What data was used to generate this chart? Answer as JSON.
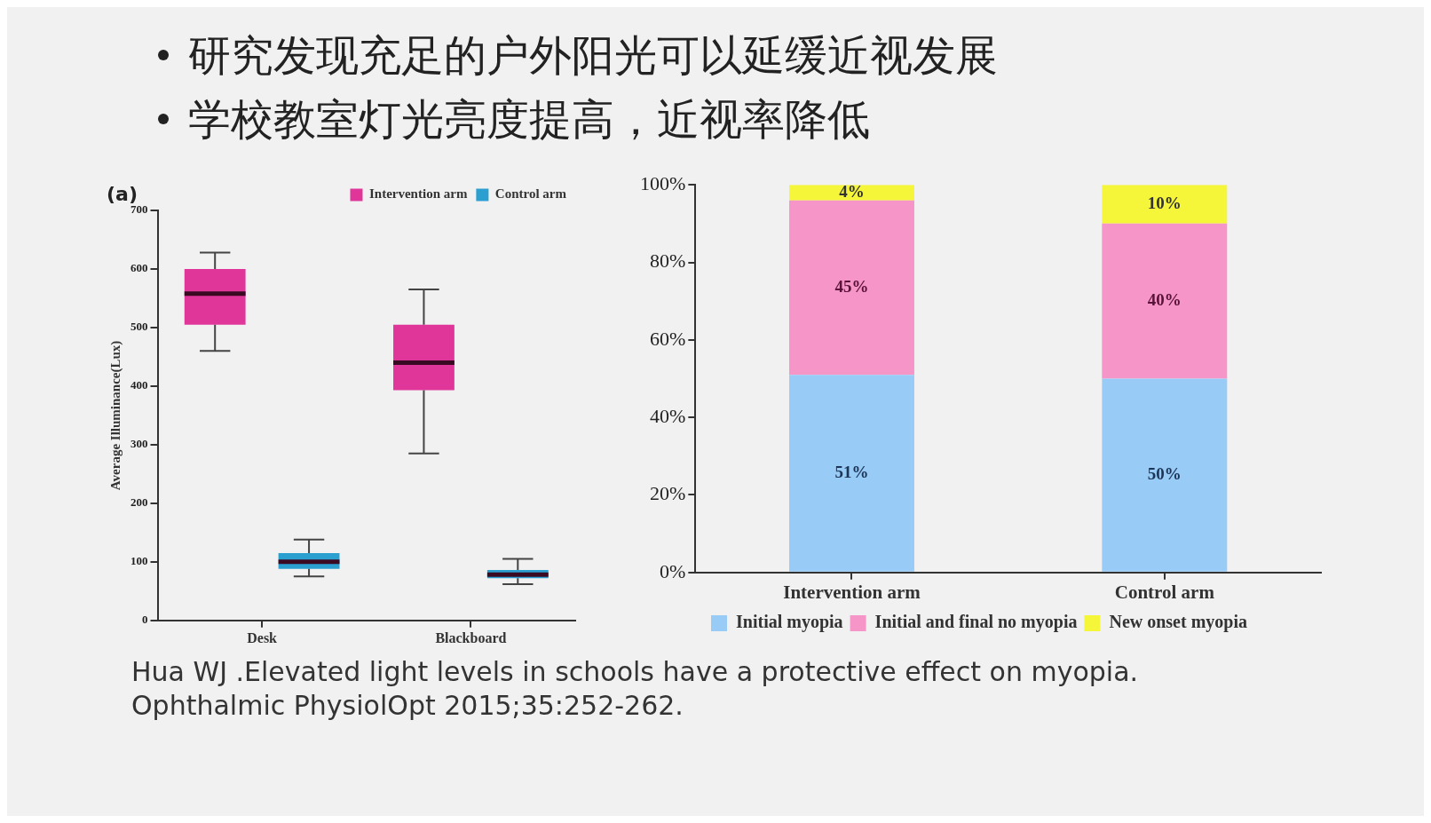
{
  "chart_data": [
    {
      "type": "other",
      "title": "研究发现充足的户外阳光可以延缓近视发展",
      "subtitle": "学校教室灯光亮度提高，近视率降低"
    },
    {
      "type": "box",
      "categories": [
        "Desk",
        "Blackboard"
      ],
      "ylabel": "Average Illuminance(Lux)",
      "ylim": [
        0,
        700
      ],
      "yticks": [
        0,
        100,
        200,
        300,
        400,
        500,
        600,
        700
      ],
      "grid": false,
      "legend": "top right",
      "annotations": [
        "(a)"
      ],
      "series": [
        {
          "name": "Intervention arm",
          "color": "#e0369a",
          "boxes": [
            {
              "low": 460,
              "q1": 505,
              "median": 558,
              "q3": 600,
              "high": 628
            },
            {
              "low": 285,
              "q1": 393,
              "median": 440,
              "q3": 505,
              "high": 565
            }
          ]
        },
        {
          "name": "Control arm",
          "color": "#2a9fd0",
          "boxes": [
            {
              "low": 75,
              "q1": 88,
              "median": 100,
              "q3": 115,
              "high": 138
            },
            {
              "low": 62,
              "q1": 72,
              "median": 78,
              "q3": 86,
              "high": 105
            }
          ]
        }
      ]
    },
    {
      "type": "bar",
      "stacked": true,
      "categories": [
        "Intervention arm",
        "Control arm"
      ],
      "ylim": [
        0,
        100
      ],
      "yticks": [
        {
          "value": 0,
          "label": "0%"
        },
        {
          "value": 20,
          "label": "20%"
        },
        {
          "value": 40,
          "label": "40%"
        },
        {
          "value": 60,
          "label": "60%"
        },
        {
          "value": 80,
          "label": "80%"
        },
        {
          "value": 100,
          "label": "100%"
        }
      ],
      "grid": false,
      "legend": "bottom",
      "series": [
        {
          "name": "Initial myopia",
          "color": "#99cbf7",
          "values": [
            51,
            50
          ],
          "value_labels": [
            "51%",
            "50%"
          ]
        },
        {
          "name": "Initial and final no myopia",
          "color": "#f595c8",
          "values": [
            45,
            40
          ],
          "value_labels": [
            "45%",
            "40%"
          ]
        },
        {
          "name": "New onset myopia",
          "color": "#f5f53a",
          "values": [
            4,
            10
          ],
          "value_labels": [
            "4%",
            "10%"
          ]
        }
      ]
    },
    {
      "type": "other",
      "annotations": [
        "Hua WJ .Elevated light levels in schools have a protective effect on myopia.\nOphthalmic PhysiolOpt 2015;35:252-262."
      ]
    }
  ]
}
